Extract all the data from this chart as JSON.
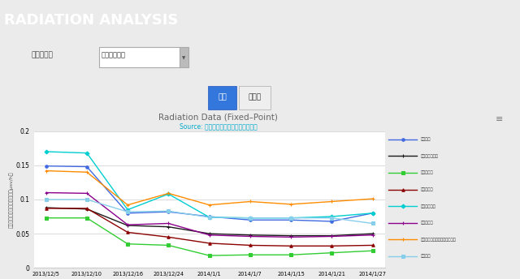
{
  "title": "Radiation Data (Fixed–Point)",
  "subtitle": "Source: 放射線測定に関する会津若松市",
  "ylabel": "マイクロシーベルト毎時間（μsv/h）",
  "dates": [
    "2013/12/5",
    "2013/12/10",
    "2013/12/16",
    "2013/12/24",
    "2014/1/1",
    "2014/1/7",
    "2014/1/15",
    "2014/1/21",
    "2014/1/27"
  ],
  "ylim": [
    0,
    0.2
  ],
  "yticks": [
    0,
    0.05,
    0.1,
    0.15,
    0.2
  ],
  "series": [
    {
      "name": "一箇塩屋",
      "color": "#4169E1",
      "marker": "o",
      "values": [
        0.149,
        0.148,
        0.08,
        0.082,
        0.075,
        0.07,
        0.07,
        0.068,
        0.08
      ]
    },
    {
      "name": "河東町日吹公園",
      "color": "#1a1a1a",
      "marker": "+",
      "values": [
        0.088,
        0.086,
        0.062,
        0.06,
        0.05,
        0.048,
        0.047,
        0.047,
        0.05
      ]
    },
    {
      "name": "河東町公园",
      "color": "#32CD32",
      "marker": "s",
      "values": [
        0.073,
        0.073,
        0.035,
        0.033,
        0.018,
        0.019,
        0.019,
        0.022,
        0.025
      ]
    },
    {
      "name": "河東町八噛",
      "color": "#8B0000",
      "marker": "^",
      "values": [
        0.087,
        0.087,
        0.052,
        0.045,
        0.036,
        0.033,
        0.032,
        0.032,
        0.033
      ]
    },
    {
      "name": "河東町小学校",
      "color": "#00CED1",
      "marker": "D",
      "values": [
        0.17,
        0.168,
        0.085,
        0.108,
        0.074,
        0.073,
        0.073,
        0.075,
        0.08
      ]
    },
    {
      "name": "会津若松市",
      "color": "#8B008B",
      "marker": "+",
      "values": [
        0.11,
        0.109,
        0.063,
        0.065,
        0.048,
        0.046,
        0.045,
        0.046,
        0.048
      ]
    },
    {
      "name": "会津組合運動公園わんぱく市場",
      "color": "#FF8C00",
      "marker": "+",
      "values": [
        0.142,
        0.14,
        0.092,
        0.109,
        0.092,
        0.097,
        0.093,
        0.097,
        0.101
      ]
    },
    {
      "name": "河東市内",
      "color": "#87CEEB",
      "marker": "s",
      "values": [
        0.1,
        0.1,
        0.082,
        0.083,
        0.074,
        0.073,
        0.073,
        0.073,
        0.065
      ]
    }
  ],
  "header_bg": "#00BCD4",
  "header_text": "RADIATION ANALYSIS",
  "form_bg": "#ebebeb",
  "chart_bg": "#ffffff",
  "grid_color": "#cccccc",
  "title_color": "#666666",
  "subtitle_color": "#00AACC"
}
